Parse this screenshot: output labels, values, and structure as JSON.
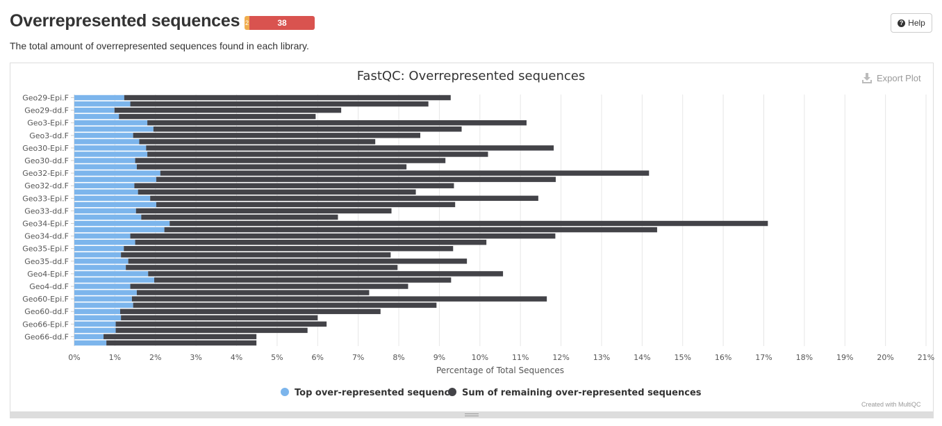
{
  "header": {
    "title": "Overrepresented sequences",
    "status": {
      "warn_count": "2",
      "fail_count": "38",
      "warn_color": "#f0ad4e",
      "fail_color": "#d9534f"
    },
    "help_label": "Help",
    "help_icon": "question-circle-icon",
    "description": "The total amount of overrepresented sequences found in each library."
  },
  "plot": {
    "export_label": "Export Plot",
    "export_icon": "download-icon",
    "credit": "Created with MultiQC"
  },
  "chart_data": {
    "type": "bar",
    "orientation": "horizontal",
    "stacked": true,
    "title": "FastQC: Overrepresented sequences",
    "xlabel": "Percentage of Total Sequences",
    "xlim": [
      0,
      21
    ],
    "x_tick_labels": [
      "0%",
      "1%",
      "2%",
      "3%",
      "4%",
      "5%",
      "6%",
      "7%",
      "8%",
      "9%",
      "10%",
      "11%",
      "12%",
      "13%",
      "14%",
      "15%",
      "16%",
      "17%",
      "18%",
      "19%",
      "20%",
      "21%"
    ],
    "grid": true,
    "legend_position": "bottom",
    "category_labels": [
      "Geo29-Epi.F",
      "Geo29-dd.F",
      "Geo3-Epi.F",
      "Geo3-dd.F",
      "Geo30-Epi.F",
      "Geo30-dd.F",
      "Geo32-Epi.F",
      "Geo32-dd.F",
      "Geo33-Epi.F",
      "Geo33-dd.F",
      "Geo34-Epi.F",
      "Geo34-dd.F",
      "Geo35-Epi.F",
      "Geo35-dd.F",
      "Geo4-Epi.F",
      "Geo4-dd.F",
      "Geo60-Epi.F",
      "Geo60-dd.F",
      "Geo66-Epi.F",
      "Geo66-dd.F"
    ],
    "label_rows": [
      0,
      2,
      4,
      6,
      8,
      10,
      12,
      14,
      16,
      18,
      20,
      22,
      24,
      26,
      28,
      30,
      32,
      34,
      36,
      38
    ],
    "series": [
      {
        "name": "Top over-represented sequence",
        "color": "#7cb5ec",
        "values": [
          1.23,
          1.38,
          0.99,
          1.1,
          1.8,
          1.95,
          1.45,
          1.6,
          1.77,
          1.8,
          1.5,
          1.54,
          2.12,
          2.02,
          1.48,
          1.57,
          1.87,
          2.02,
          1.52,
          1.65,
          2.35,
          2.22,
          1.38,
          1.5,
          1.22,
          1.15,
          1.33,
          1.27,
          1.82,
          1.97,
          1.38,
          1.54,
          1.42,
          1.45,
          1.13,
          1.15,
          1.02,
          1.02,
          0.72,
          0.79
        ]
      },
      {
        "name": "Sum of remaining over-represented sequences",
        "color": "#434348",
        "values": [
          8.05,
          7.35,
          5.59,
          4.85,
          9.35,
          7.6,
          7.08,
          5.82,
          10.05,
          8.4,
          7.65,
          6.65,
          12.05,
          9.85,
          7.88,
          6.85,
          9.57,
          7.37,
          6.3,
          4.85,
          14.75,
          12.15,
          10.48,
          8.66,
          8.12,
          6.65,
          8.35,
          6.7,
          8.75,
          7.32,
          6.85,
          5.73,
          10.23,
          7.48,
          6.42,
          4.85,
          5.2,
          4.73,
          3.77,
          3.7
        ]
      }
    ]
  }
}
